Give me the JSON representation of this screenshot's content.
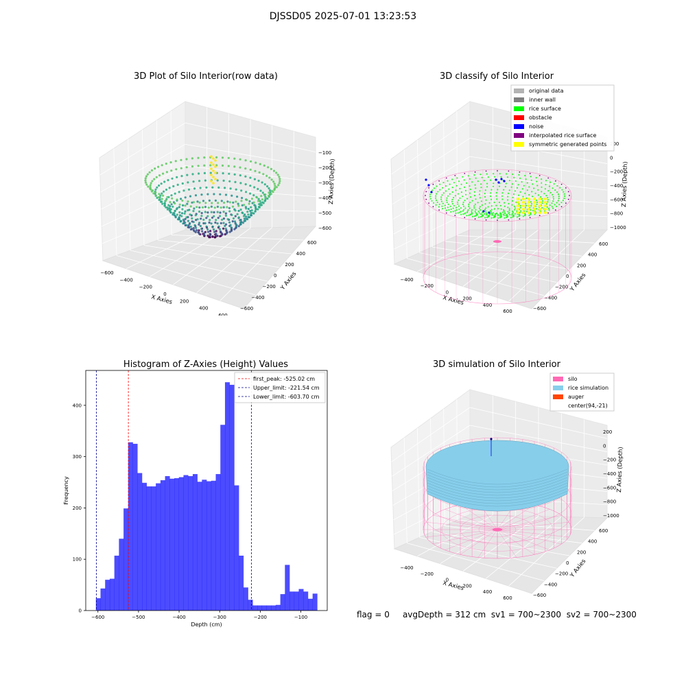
{
  "suptitle": "DJSSD05 2025-07-01 13:23:53",
  "footer": {
    "flag": "flag = 0",
    "avg_depth": "avgDepth = 312 cm",
    "sv1": "sv1 = 700~2300",
    "sv2": "sv2 = 700~2300"
  },
  "colors": {
    "viridis_low": "#440154",
    "viridis_mid": "#2a788e",
    "viridis_high": "#5ec962",
    "viridis_top": "#fde725",
    "silo": "#ff69b4",
    "rice_simulation": "#87ceeb",
    "auger": "#ff4500",
    "hist_bar": "#0000ff",
    "first_peak_line": "#ff0000",
    "limit_line": "#00008b"
  },
  "chart_data": [
    {
      "type": "scatter3d",
      "title": "3D Plot of Silo Interior(row data)",
      "xlabel": "X Axies",
      "ylabel": "Y Axies",
      "zlabel": "Z Axies (Depth)",
      "x_ticks": [
        "−600",
        "−400",
        "−200",
        "0",
        "200",
        "400",
        "600"
      ],
      "y_ticks": [
        "−600",
        "−400",
        "−200",
        "0",
        "200",
        "400",
        "600"
      ],
      "z_ticks": [
        "−100",
        "−200",
        "−300",
        "−400",
        "−500",
        "−600"
      ],
      "colormap": "viridis"
    },
    {
      "type": "scatter3d",
      "title": "3D classify of Silo Interior",
      "xlabel": "X Axies",
      "ylabel": "Y Axies",
      "zlabel": "Z Axies (Depth)",
      "x_ticks": [
        "−400",
        "−200",
        "0",
        "200",
        "400",
        "600"
      ],
      "y_ticks": [
        "−600",
        "−400",
        "−200",
        "0",
        "200",
        "400",
        "600"
      ],
      "z_ticks": [
        "200",
        "0",
        "−200",
        "−400",
        "−600",
        "−800",
        "−1000"
      ],
      "legend": [
        {
          "label": "original data",
          "color": "#b3b3b3"
        },
        {
          "label": "inner wall",
          "color": "#808080"
        },
        {
          "label": "rice surface",
          "color": "#00ff00"
        },
        {
          "label": "obstacle",
          "color": "#ff0000"
        },
        {
          "label": "noise",
          "color": "#0000ff"
        },
        {
          "label": "interpolated rice surface",
          "color": "#800080"
        },
        {
          "label": "symmetric generated points",
          "color": "#ffff00"
        }
      ],
      "legend_position": "top-right"
    },
    {
      "type": "bar",
      "title": "Histogram of Z-Axies (Height) Values",
      "xlabel": "Depth (cm)",
      "ylabel": "Frequency",
      "xlim": [
        -630,
        -35
      ],
      "ylim": [
        0,
        468
      ],
      "x_ticks": [
        -600,
        -500,
        -400,
        -300,
        -200,
        -100
      ],
      "y_ticks": [
        0,
        100,
        200,
        300,
        400
      ],
      "bin_start": -605,
      "bin_width": 11.36,
      "values": [
        24,
        43,
        60,
        62,
        107,
        140,
        199,
        328,
        325,
        268,
        249,
        242,
        242,
        248,
        254,
        262,
        257,
        258,
        260,
        264,
        262,
        266,
        251,
        255,
        252,
        253,
        266,
        362,
        445,
        440,
        244,
        107,
        45,
        21,
        10,
        10,
        10,
        10,
        10,
        11,
        32,
        89,
        37,
        37,
        42,
        37,
        23,
        33
      ],
      "vlines": [
        {
          "label": "first_peak: -525.02 cm",
          "x": -525.02,
          "color": "#ff0000"
        },
        {
          "label": "Upper_limit: -221.54 cm",
          "x": -221.54,
          "color": "#00008b"
        },
        {
          "label": "Lower_limit: -603.70 cm",
          "x": -603.7,
          "color": "#00008b"
        }
      ],
      "legend_position": "top-right"
    },
    {
      "type": "surface3d",
      "title": "3D simulation of Silo Interior",
      "xlabel": "X Axies",
      "ylabel": "Y Axies",
      "zlabel": "Z Axies (Depth)",
      "x_ticks": [
        "−400",
        "−200",
        "0",
        "200",
        "400",
        "600"
      ],
      "y_ticks": [
        "−600",
        "−400",
        "−200",
        "0",
        "200",
        "400",
        "600"
      ],
      "z_ticks": [
        "200",
        "0",
        "−200",
        "−400",
        "−600",
        "−800",
        "−1000"
      ],
      "legend": [
        {
          "label": "silo",
          "color": "#ff69b4"
        },
        {
          "label": "rice simulation",
          "color": "#87ceeb"
        },
        {
          "label": "auger",
          "color": "#ff4500"
        },
        {
          "label": "center(94,-21)",
          "color": ""
        }
      ],
      "legend_position": "top-right"
    }
  ]
}
